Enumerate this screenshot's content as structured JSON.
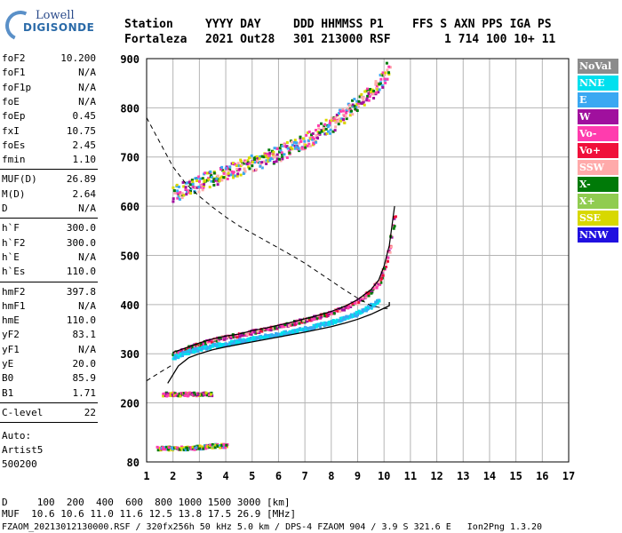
{
  "logo": {
    "line1": "Lowell",
    "line2": "DIGISONDE"
  },
  "header": {
    "row1": [
      "Station",
      "YYYY DAY",
      "DDD HHMMSS P1",
      "FFS S AXN PPS IGA PS"
    ],
    "row2": [
      "Fortaleza",
      "2021 Out28",
      "301 213000 RSF",
      "1 714 100 10+ 11"
    ]
  },
  "params": {
    "group1": [
      {
        "k": "foF2",
        "v": "10.200"
      },
      {
        "k": "foF1",
        "v": "N/A"
      },
      {
        "k": "foF1p",
        "v": "N/A"
      },
      {
        "k": "foE",
        "v": "N/A"
      },
      {
        "k": "foEp",
        "v": "0.45"
      },
      {
        "k": "fxI",
        "v": "10.75"
      },
      {
        "k": "foEs",
        "v": "2.45"
      },
      {
        "k": "fmin",
        "v": "1.10"
      }
    ],
    "group2": [
      {
        "k": "MUF(D)",
        "v": "26.89"
      },
      {
        "k": "M(D)",
        "v": "2.64"
      },
      {
        "k": "D",
        "v": "N/A"
      }
    ],
    "group3": [
      {
        "k": "h`F",
        "v": "300.0"
      },
      {
        "k": "h`F2",
        "v": "300.0"
      },
      {
        "k": "h`E",
        "v": "N/A"
      },
      {
        "k": "h`Es",
        "v": "110.0"
      }
    ],
    "group4": [
      {
        "k": "hmF2",
        "v": "397.8"
      },
      {
        "k": "hmF1",
        "v": "N/A"
      },
      {
        "k": "hmE",
        "v": "110.0"
      },
      {
        "k": "yF2",
        "v": "83.1"
      },
      {
        "k": "yF1",
        "v": "N/A"
      },
      {
        "k": "yE",
        "v": "20.0"
      },
      {
        "k": "B0",
        "v": "85.9"
      },
      {
        "k": "B1",
        "v": "1.71"
      }
    ],
    "group5": [
      {
        "k": "C-level",
        "v": "22"
      }
    ],
    "auto": [
      "Auto:",
      "Artist5",
      "500200"
    ]
  },
  "legend": [
    {
      "label": "NoVal",
      "color": "#8c8c8c"
    },
    {
      "label": "NNE",
      "color": "#00e0ee"
    },
    {
      "label": "E",
      "color": "#3aa8f2"
    },
    {
      "label": "W",
      "color": "#a0109e"
    },
    {
      "label": "Vo-",
      "color": "#ff3cae"
    },
    {
      "label": "Vo+",
      "color": "#f0103a"
    },
    {
      "label": "SSW",
      "color": "#ffaaaa"
    },
    {
      "label": "X-",
      "color": "#007a08"
    },
    {
      "label": "X+",
      "color": "#90cc50"
    },
    {
      "label": "SSE",
      "color": "#d8d800"
    },
    {
      "label": "NNW",
      "color": "#2010e0"
    }
  ],
  "footer": {
    "d_row": "D     100  200  400  600  800 1000 1500 3000 [km]",
    "muf_row": "MUF  10.6 10.6 11.0 11.6 12.5 13.8 17.5 26.9 [MHz]",
    "file_row": "FZAOM_20213012130000.RSF / 320fx256h 50 kHz 5.0 km / DPS-4 FZAOM 904 / 3.9 S 321.6 E   Ion2Png 1.3.20"
  },
  "chart_data": {
    "type": "scatter",
    "title": "",
    "xlabel": "",
    "ylabel": "",
    "xlim": [
      1,
      17
    ],
    "ylim": [
      80,
      900
    ],
    "x_ticks": [
      1,
      2,
      3,
      4,
      5,
      6,
      7,
      8,
      9,
      10,
      11,
      12,
      13,
      14,
      15,
      16,
      17
    ],
    "y_ticks": [
      80,
      200,
      300,
      400,
      500,
      600,
      700,
      800,
      900
    ],
    "grid": true,
    "legend_position": "right",
    "traces": [
      {
        "name": "O-trace F layer",
        "points": [
          [
            2.0,
            303
          ],
          [
            2.5,
            312
          ],
          [
            3.0,
            322
          ],
          [
            3.5,
            330
          ],
          [
            4.0,
            336
          ],
          [
            4.5,
            340
          ],
          [
            5.0,
            347
          ],
          [
            5.5,
            352
          ],
          [
            6.0,
            358
          ],
          [
            6.5,
            364
          ],
          [
            7.0,
            371
          ],
          [
            7.5,
            378
          ],
          [
            8.0,
            386
          ],
          [
            8.5,
            396
          ],
          [
            9.0,
            410
          ],
          [
            9.5,
            430
          ],
          [
            9.8,
            450
          ],
          [
            10.0,
            478
          ],
          [
            10.2,
            520
          ],
          [
            10.3,
            560
          ],
          [
            10.4,
            600
          ]
        ]
      },
      {
        "name": "X-trace F layer",
        "points": [
          [
            2.0,
            295
          ],
          [
            2.5,
            305
          ],
          [
            3.0,
            312
          ],
          [
            3.5,
            318
          ],
          [
            4.0,
            322
          ],
          [
            4.5,
            328
          ],
          [
            5.0,
            333
          ],
          [
            5.5,
            338
          ],
          [
            6.0,
            342
          ],
          [
            6.5,
            347
          ],
          [
            7.0,
            353
          ],
          [
            7.5,
            360
          ],
          [
            8.0,
            367
          ],
          [
            8.5,
            375
          ],
          [
            9.0,
            385
          ],
          [
            9.5,
            400
          ],
          [
            9.8,
            415
          ]
        ]
      },
      {
        "name": "F layer second hop",
        "points": [
          [
            2.0,
            625
          ],
          [
            2.5,
            640
          ],
          [
            3.0,
            650
          ],
          [
            3.5,
            660
          ],
          [
            4.0,
            670
          ],
          [
            4.5,
            680
          ],
          [
            5.0,
            690
          ],
          [
            5.5,
            700
          ],
          [
            6.0,
            710
          ],
          [
            6.5,
            722
          ],
          [
            7.0,
            735
          ],
          [
            7.5,
            752
          ],
          [
            8.0,
            770
          ],
          [
            8.5,
            790
          ],
          [
            9.0,
            812
          ],
          [
            9.5,
            835
          ],
          [
            10.0,
            865
          ],
          [
            10.2,
            890
          ]
        ]
      },
      {
        "name": "Es layer",
        "points": [
          [
            1.4,
            110
          ],
          [
            2.0,
            110
          ],
          [
            2.5,
            110
          ],
          [
            3.0,
            112
          ],
          [
            3.5,
            115
          ],
          [
            4.0,
            115
          ]
        ]
      },
      {
        "name": "Es second hop",
        "points": [
          [
            1.6,
            220
          ],
          [
            2.0,
            220
          ],
          [
            2.5,
            220
          ],
          [
            3.0,
            220
          ],
          [
            3.4,
            220
          ]
        ]
      }
    ],
    "profile": [
      [
        1.8,
        240
      ],
      [
        2.2,
        275
      ],
      [
        2.6,
        292
      ],
      [
        3.0,
        300
      ],
      [
        3.5,
        308
      ],
      [
        4.0,
        314
      ],
      [
        5.0,
        324
      ],
      [
        6.0,
        334
      ],
      [
        7.0,
        344
      ],
      [
        8.0,
        355
      ],
      [
        8.5,
        362
      ],
      [
        9.0,
        370
      ],
      [
        9.5,
        380
      ],
      [
        9.9,
        390
      ],
      [
        10.2,
        397.8
      ],
      [
        10.2,
        405
      ]
    ],
    "model_curve": [
      [
        1.0,
        780
      ],
      [
        1.5,
        730
      ],
      [
        2.0,
        680
      ],
      [
        2.5,
        645
      ],
      [
        3.0,
        620
      ],
      [
        3.5,
        598
      ],
      [
        4.0,
        578
      ],
      [
        4.5,
        560
      ],
      [
        5.0,
        545
      ],
      [
        5.5,
        530
      ],
      [
        6.0,
        515
      ],
      [
        6.5,
        500
      ],
      [
        7.0,
        484
      ],
      [
        7.5,
        466
      ],
      [
        8.0,
        448
      ],
      [
        8.5,
        430
      ],
      [
        9.0,
        413
      ],
      [
        9.5,
        398
      ],
      [
        10.0,
        392
      ],
      [
        10.2,
        392
      ]
    ],
    "model_curve_lower": [
      [
        1.0,
        245
      ],
      [
        1.5,
        262
      ],
      [
        2.0,
        278
      ]
    ]
  }
}
